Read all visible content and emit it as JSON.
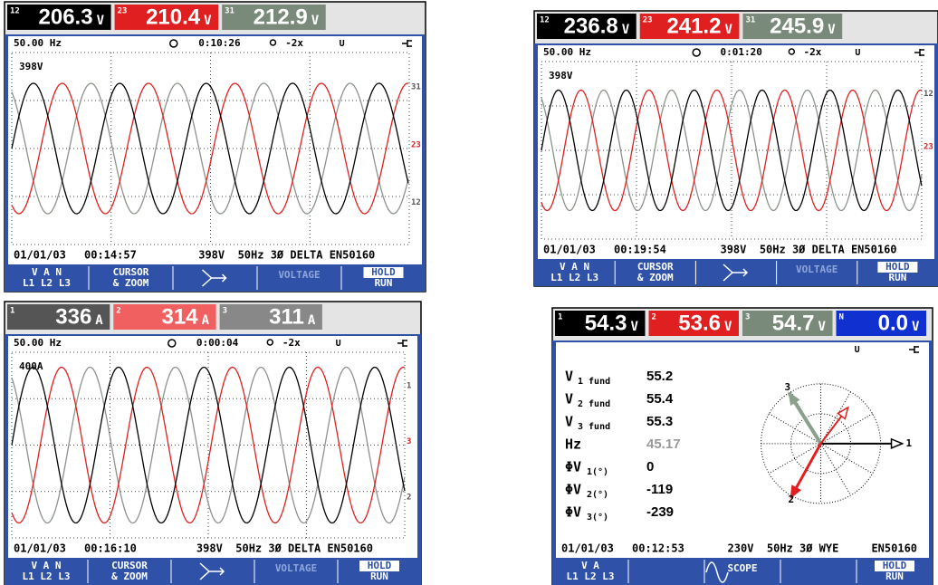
{
  "screens": [
    {
      "readings": [
        {
          "index": "12",
          "value": "206.3",
          "unit": "V",
          "color": "#000000"
        },
        {
          "index": "23",
          "value": "210.4",
          "unit": "V",
          "color": "#e02020"
        },
        {
          "index": "31",
          "value": "212.9",
          "unit": "V",
          "color": "#7a8a7a"
        }
      ],
      "frequency": "50.00 Hz",
      "timer": "0:10:26",
      "zoom": "-2x",
      "mode": "U",
      "scale_label": "398V",
      "trace_labels": [
        "31",
        "23",
        "12"
      ],
      "status": {
        "date": "01/01/03",
        "time": "00:14:57",
        "info": "398V  50Hz 3Ø DELTA EN50160"
      },
      "softkeys": [
        {
          "lines": [
            "V A N",
            "L1 L2 L3"
          ]
        },
        {
          "lines": [
            "CURSOR",
            "& ZOOM"
          ]
        },
        null,
        {
          "lines": [
            "VOLTAGE"
          ],
          "style": "dim"
        },
        {
          "lines": [
            "HOLD",
            "RUN"
          ],
          "style": "boxed"
        }
      ]
    },
    {
      "readings": [
        {
          "index": "12",
          "value": "236.8",
          "unit": "V",
          "color": "#000000"
        },
        {
          "index": "23",
          "value": "241.2",
          "unit": "V",
          "color": "#e02020"
        },
        {
          "index": "31",
          "value": "245.9",
          "unit": "V",
          "color": "#7a8a7a"
        }
      ],
      "frequency": "50.00 Hz",
      "timer": "0:01:20",
      "zoom": "-2x",
      "mode": "U",
      "scale_label": "398V",
      "trace_labels": [
        "12",
        "23"
      ],
      "status": {
        "date": "01/01/03",
        "time": "00:19:54",
        "info": "398V  50Hz 3Ø DELTA EN50160"
      },
      "softkeys": [
        {
          "lines": [
            "V A N",
            "L1 L2 L3"
          ]
        },
        {
          "lines": [
            "CURSOR",
            "& ZOOM"
          ]
        },
        null,
        {
          "lines": [
            "VOLTAGE"
          ],
          "style": "dim"
        },
        {
          "lines": [
            "HOLD",
            "RUN"
          ],
          "style": "boxed"
        }
      ]
    },
    {
      "readings": [
        {
          "index": "1",
          "value": "336",
          "unit": "A",
          "color": "#555555"
        },
        {
          "index": "2",
          "value": "314",
          "unit": "A",
          "color": "#f06060"
        },
        {
          "index": "3",
          "value": "311",
          "unit": "A",
          "color": "#888888"
        }
      ],
      "frequency": "50.00 Hz",
      "timer": "0:00:04",
      "zoom": "-2x",
      "mode": "U",
      "scale_label": "400A",
      "trace_labels": [
        "1",
        "3",
        "2"
      ],
      "status": {
        "date": "01/01/03",
        "time": "00:16:10",
        "info": "398V  50Hz 3Ø DELTA EN50160"
      },
      "softkeys": [
        {
          "lines": [
            "V A N",
            "L1 L2 L3"
          ]
        },
        {
          "lines": [
            "CURSOR",
            "& ZOOM"
          ]
        },
        null,
        {
          "lines": [
            "VOLTAGE"
          ],
          "style": "dim"
        },
        {
          "lines": [
            "HOLD",
            "RUN"
          ],
          "style": "boxed"
        }
      ]
    },
    {
      "readings": [
        {
          "index": "1",
          "value": "54.3",
          "unit": "V",
          "color": "#000000"
        },
        {
          "index": "2",
          "value": "53.6",
          "unit": "V",
          "color": "#e02020"
        },
        {
          "index": "3",
          "value": "54.7",
          "unit": "V",
          "color": "#7a8a7a"
        },
        {
          "index": "N",
          "value": "0.0",
          "unit": "V",
          "color": "#1030d0"
        }
      ],
      "mode": "U",
      "table": [
        {
          "symbol": "V",
          "sub": "1 fund",
          "value": "55.2"
        },
        {
          "symbol": "V",
          "sub": "2 fund",
          "value": "55.4"
        },
        {
          "symbol": "V",
          "sub": "3 fund",
          "value": "55.3"
        },
        {
          "symbol": "Hz",
          "value": "45.17",
          "style": "dim"
        },
        {
          "symbol": "ΦV",
          "sub": "1(°)",
          "value": "0"
        },
        {
          "symbol": "ΦV",
          "sub": "2(°)",
          "value": "-119"
        },
        {
          "symbol": "ΦV",
          "sub": "3(°)",
          "value": "-239"
        }
      ],
      "phasor_labels": [
        "1",
        "2",
        "3"
      ],
      "status": {
        "date": "01/01/03",
        "time": "00:12:53",
        "info": "230V  50Hz 3Ø WYE     EN50160"
      },
      "softkeys": [
        {
          "lines": [
            "V A",
            "L1 L2 L3"
          ]
        },
        null,
        {
          "lines": [
            "SCOPE"
          ]
        },
        null,
        {
          "lines": [
            "HOLD",
            "RUN"
          ],
          "style": "boxed"
        }
      ]
    }
  ]
}
